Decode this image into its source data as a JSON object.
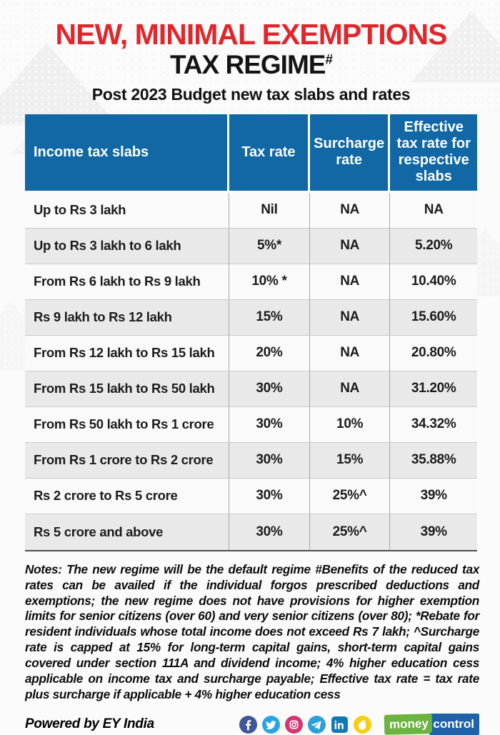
{
  "header": {
    "title_line1": "NEW, MINIMAL EXEMPTIONS",
    "title_line2": "TAX REGIME",
    "title_superscript": "#",
    "subtitle": "Post 2023 Budget new tax slabs and rates",
    "title_color": "#e0272c"
  },
  "table": {
    "header_bg": "#1168a5",
    "columns": [
      "Income tax slabs",
      "Tax rate",
      "Surcharge rate",
      "Effective tax rate for respective slabs"
    ],
    "rows": [
      [
        "Up to Rs 3 lakh",
        "Nil",
        "NA",
        "NA"
      ],
      [
        "Up to Rs 3 lakh to 6 lakh",
        "5%*",
        "NA",
        "5.20%"
      ],
      [
        "From Rs 6 lakh to Rs 9 lakh",
        "10% *",
        "NA",
        "10.40%"
      ],
      [
        "Rs 9 lakh to Rs 12 lakh",
        "15%",
        "NA",
        "15.60%"
      ],
      [
        "From Rs 12 lakh to Rs 15 lakh",
        "20%",
        "NA",
        "20.80%"
      ],
      [
        "From Rs 15 lakh to Rs 50 lakh",
        "30%",
        "NA",
        "31.20%"
      ],
      [
        "From Rs 50 lakh to Rs 1 crore",
        "30%",
        "10%",
        "34.32%"
      ],
      [
        "From Rs 1 crore to Rs 2 crore",
        "30%",
        "15%",
        "35.88%"
      ],
      [
        "Rs 2 crore to Rs 5 crore",
        "30%",
        "25%^",
        "39%"
      ],
      [
        "Rs 5 crore and above",
        "30%",
        "25%^",
        "39%"
      ]
    ]
  },
  "chart_data": {
    "type": "table",
    "title": "NEW, MINIMAL EXEMPTIONS TAX REGIME#",
    "subtitle": "Post 2023 Budget new tax slabs and rates",
    "columns": [
      "Income tax slabs",
      "Tax rate",
      "Surcharge rate",
      "Effective tax rate for respective slabs"
    ],
    "rows": [
      [
        "Up to Rs 3 lakh",
        "Nil",
        "NA",
        "NA"
      ],
      [
        "Up to Rs 3 lakh to 6 lakh",
        "5%*",
        "NA",
        "5.20%"
      ],
      [
        "From Rs 6 lakh to Rs 9 lakh",
        "10% *",
        "NA",
        "10.40%"
      ],
      [
        "Rs 9 lakh to Rs 12 lakh",
        "15%",
        "NA",
        "15.60%"
      ],
      [
        "From Rs 12 lakh to Rs 15 lakh",
        "20%",
        "NA",
        "20.80%"
      ],
      [
        "From Rs 15 lakh to Rs 50 lakh",
        "30%",
        "NA",
        "31.20%"
      ],
      [
        "From Rs 50 lakh to Rs 1 crore",
        "30%",
        "10%",
        "34.32%"
      ],
      [
        "From Rs 1 crore to Rs 2 crore",
        "30%",
        "15%",
        "35.88%"
      ],
      [
        "Rs 2 crore to Rs 5 crore",
        "30%",
        "25%^",
        "39%"
      ],
      [
        "Rs 5 crore and above",
        "30%",
        "25%^",
        "39%"
      ]
    ]
  },
  "notes": "Notes: The new regime will be the default regime #Benefits of the reduced tax rates can be availed if the individual forgos prescribed deductions and exemptions; the new regime does not have provisions for higher exemption limits for senior citizens (over 60) and very senior citizens (over 80); *Rebate for resident individuals whose total income does not exceed Rs 7 lakh; ^Surcharge rate is capped at 15% for long-term capital gains, short-term capital gains covered under section 111A and dividend income; 4% higher education cess applicable on income tax and surcharge payable; Effective tax rate = tax rate plus surcharge if applicable + 4% higher education cess",
  "footer": {
    "powered_by": "Powered by EY India",
    "social": [
      {
        "name": "facebook",
        "color": "#41579b"
      },
      {
        "name": "twitter",
        "color": "#29a3e3"
      },
      {
        "name": "instagram",
        "color": "#d6356f"
      },
      {
        "name": "telegram",
        "color": "#2ba0da"
      },
      {
        "name": "linkedin",
        "color": "#1178b3"
      },
      {
        "name": "koo",
        "color": "#f6cf12"
      }
    ],
    "logo": {
      "text1": "money",
      "text2": "control",
      "color1": "#6cb33f",
      "color2": "#2062a8"
    }
  }
}
